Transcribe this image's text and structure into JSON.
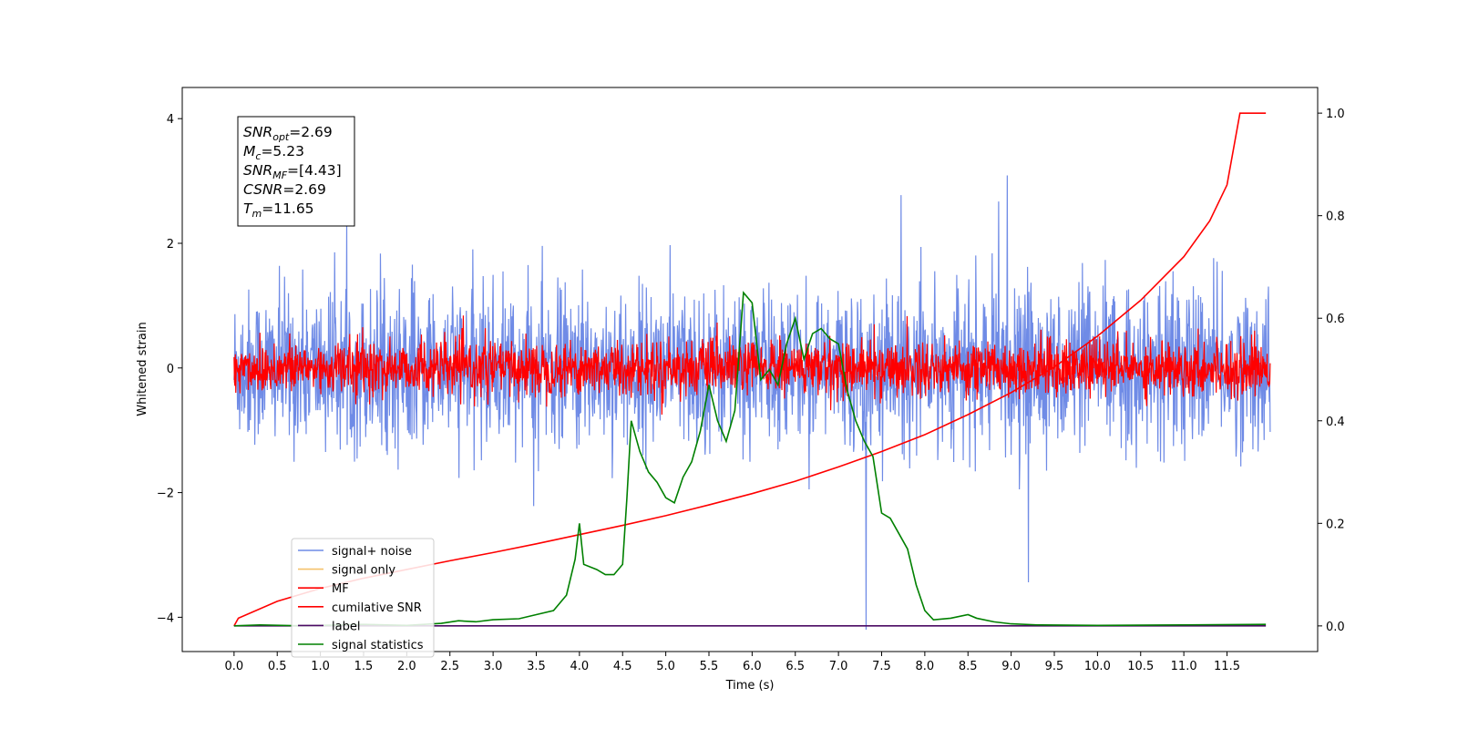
{
  "chart_data": {
    "type": "line",
    "xlabel": "Time (s)",
    "ylabel": "Whitened strain",
    "x_ticks": [
      "0.0",
      "0.5",
      "1.0",
      "1.5",
      "2.0",
      "2.5",
      "3.0",
      "3.5",
      "4.0",
      "4.5",
      "5.0",
      "5.5",
      "6.0",
      "6.5",
      "7.0",
      "7.5",
      "8.0",
      "8.5",
      "9.0",
      "9.5",
      "10.0",
      "10.5",
      "11.0",
      "11.5"
    ],
    "xlim": [
      -0.6,
      12.55
    ],
    "ylim_left": [
      -4.55,
      4.5
    ],
    "ylim_right": [
      -0.05,
      1.05
    ],
    "y_ticks_left": [
      "4",
      "2",
      "0",
      "−2",
      "−4"
    ],
    "y_ticks_right": [
      "1.0",
      "0.8",
      "0.6",
      "0.4",
      "0.2",
      "0.0"
    ],
    "x_range": [
      0,
      12
    ],
    "series": [
      {
        "name": "signal+ noise",
        "color": "#6f8be6",
        "axis": "left",
        "kind": "noise",
        "std": 0.62,
        "mean": 0.0
      },
      {
        "name": "signal only",
        "color": "#f5c26b",
        "axis": "left",
        "kind": "hidden"
      },
      {
        "name": "MF",
        "color": "#ff0000",
        "axis": "left",
        "kind": "noise",
        "std": 0.22,
        "mean": 0.0
      },
      {
        "name": "cumilative SNR",
        "color": "#ff0000",
        "axis": "right",
        "kind": "line",
        "x": [
          0.0,
          0.05,
          0.5,
          1.0,
          1.5,
          2.0,
          2.5,
          3.0,
          3.5,
          4.0,
          4.5,
          5.0,
          5.5,
          6.0,
          6.5,
          7.0,
          7.5,
          8.0,
          8.5,
          9.0,
          9.5,
          10.0,
          10.5,
          11.0,
          11.3,
          11.5,
          11.65,
          11.7,
          11.95
        ],
        "y": [
          0.0,
          0.015,
          0.048,
          0.073,
          0.093,
          0.11,
          0.127,
          0.143,
          0.16,
          0.178,
          0.196,
          0.215,
          0.236,
          0.258,
          0.282,
          0.31,
          0.34,
          0.373,
          0.412,
          0.455,
          0.505,
          0.565,
          0.635,
          0.72,
          0.79,
          0.86,
          1.0,
          1.0,
          1.0
        ]
      },
      {
        "name": "label",
        "color": "#4b0a63",
        "axis": "right",
        "kind": "line",
        "x": [
          0.0,
          11.95
        ],
        "y": [
          0.0,
          0.0
        ]
      },
      {
        "name": "signal statistics",
        "color": "#008000",
        "axis": "right",
        "kind": "line",
        "x": [
          0.0,
          0.3,
          0.8,
          1.5,
          2.0,
          2.4,
          2.6,
          2.8,
          3.0,
          3.3,
          3.5,
          3.7,
          3.85,
          3.95,
          4.0,
          4.05,
          4.2,
          4.3,
          4.4,
          4.5,
          4.55,
          4.6,
          4.7,
          4.8,
          4.9,
          5.0,
          5.1,
          5.2,
          5.3,
          5.4,
          5.5,
          5.6,
          5.7,
          5.8,
          5.9,
          6.0,
          6.1,
          6.2,
          6.3,
          6.4,
          6.5,
          6.6,
          6.7,
          6.8,
          6.9,
          7.0,
          7.1,
          7.2,
          7.3,
          7.4,
          7.5,
          7.6,
          7.7,
          7.8,
          7.9,
          8.0,
          8.1,
          8.3,
          8.5,
          8.6,
          8.8,
          9.0,
          9.3,
          10.0,
          11.0,
          11.95
        ],
        "y": [
          0.0,
          0.002,
          0.0,
          0.003,
          0.001,
          0.005,
          0.01,
          0.008,
          0.012,
          0.014,
          0.022,
          0.03,
          0.06,
          0.13,
          0.2,
          0.12,
          0.11,
          0.1,
          0.1,
          0.12,
          0.25,
          0.4,
          0.34,
          0.3,
          0.28,
          0.25,
          0.24,
          0.29,
          0.32,
          0.38,
          0.47,
          0.4,
          0.36,
          0.42,
          0.65,
          0.63,
          0.48,
          0.5,
          0.47,
          0.55,
          0.6,
          0.52,
          0.57,
          0.58,
          0.56,
          0.55,
          0.46,
          0.4,
          0.36,
          0.33,
          0.22,
          0.21,
          0.18,
          0.15,
          0.08,
          0.03,
          0.012,
          0.015,
          0.022,
          0.015,
          0.008,
          0.004,
          0.002,
          0.001,
          0.002,
          0.003
        ]
      }
    ],
    "annotation": {
      "lines": [
        {
          "main": "SNR",
          "sub": "opt",
          "value": "=2.69"
        },
        {
          "main": "M",
          "sub": "c",
          "value": "=5.23"
        },
        {
          "main": "SNR",
          "sub": "MF",
          "value": "=[4.43]"
        },
        {
          "main": "CSNR",
          "sub": "",
          "value": "=2.69"
        },
        {
          "main": "T",
          "sub": "m",
          "value": "=11.65"
        }
      ]
    },
    "spike": {
      "x": 7.32,
      "y": -4.2
    }
  }
}
